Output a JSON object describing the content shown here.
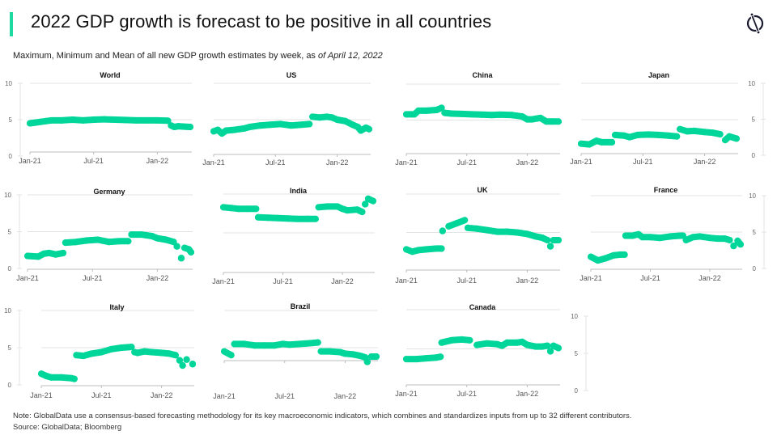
{
  "header": {
    "title": "2022 GDP growth is forecast to be positive in all countries",
    "subtitle_prefix": "Maximum, Minimum and Mean of all new GDP growth estimates by week, as ",
    "subtitle_date": "of April 12, 2022",
    "logo_icon": "globaldata-logo-icon"
  },
  "colors": {
    "accent": "#1ed9a0",
    "series": "#00d69a",
    "grid": "#e3e3e3",
    "axis": "#bdbdbd",
    "tick_text": "#666666"
  },
  "footer": {
    "note": "Note: GlobalData use a consensus-based forecasting methodology for its key macroeconomic indicators, which combines and standardizes inputs from up to 32 different contributors.",
    "source": "Source: GlobalData; Bloomberg"
  },
  "chart_data": [
    {
      "type": "scatter",
      "title": "World",
      "xlabel": "",
      "ylabel": "",
      "x_ticks": [
        "Jan-21",
        "Jul-21",
        "Jan-22"
      ],
      "x_range": [
        "Jan-21",
        "Apr-22"
      ],
      "ylim": [
        0,
        10
      ],
      "y_ticks": [
        0,
        5,
        10
      ],
      "y_axis_side": "left",
      "grid": true,
      "x_months": [
        0,
        0.5,
        1,
        1.5,
        2,
        3,
        4,
        5,
        6,
        7,
        8,
        9,
        10,
        11,
        12,
        13,
        13.3,
        13.6,
        14,
        14.5,
        15.1
      ],
      "values": [
        4.5,
        4.6,
        4.7,
        4.8,
        4.9,
        4.9,
        5.0,
        4.9,
        5.0,
        5.05,
        5.0,
        4.95,
        4.9,
        4.9,
        4.9,
        4.85,
        4.2,
        4.0,
        4.1,
        4.05,
        4.0
      ]
    },
    {
      "type": "scatter",
      "title": "US",
      "xlabel": "",
      "ylabel": "",
      "x_ticks": [
        "Jan-21",
        "Jul-21",
        "Jan-22"
      ],
      "x_range": [
        "Jan-21",
        "Apr-22"
      ],
      "ylim": [
        0,
        10
      ],
      "y_ticks": [
        0,
        5,
        10
      ],
      "y_axis_side": "none",
      "grid": true,
      "x_months": [
        0,
        0.4,
        0.8,
        1.2,
        2,
        3,
        3.5,
        4.5,
        5.5,
        6.5,
        7.5,
        8.5,
        9.3,
        9.6,
        10.3,
        11,
        11.5,
        12,
        12.8,
        13.5,
        14,
        14.3,
        14.8,
        15.1
      ],
      "values": [
        3.4,
        3.6,
        3.1,
        3.5,
        3.6,
        3.8,
        4.0,
        4.2,
        4.3,
        4.4,
        4.2,
        4.3,
        4.4,
        5.4,
        5.3,
        5.4,
        5.3,
        5.0,
        4.8,
        4.3,
        4.0,
        3.5,
        3.9,
        3.7
      ]
    },
    {
      "type": "scatter",
      "title": "China",
      "xlabel": "",
      "ylabel": "",
      "x_ticks": [
        "Jan-21",
        "Jul-21",
        "Jan-22"
      ],
      "x_range": [
        "Jan-21",
        "Apr-22"
      ],
      "ylim": [
        0,
        10
      ],
      "y_ticks": [
        0,
        5,
        10
      ],
      "y_axis_side": "none",
      "grid": true,
      "x_months": [
        0,
        0.8,
        1.2,
        2,
        3,
        3.5,
        3.8,
        4.5,
        5.5,
        6.5,
        7.5,
        8.5,
        9.3,
        10.5,
        11.5,
        12,
        12.5,
        13.3,
        13.9,
        14.4,
        15.1
      ],
      "values": [
        5.8,
        5.8,
        6.3,
        6.3,
        6.4,
        6.7,
        6.0,
        5.9,
        5.85,
        5.8,
        5.75,
        5.7,
        5.75,
        5.7,
        5.5,
        5.1,
        5.1,
        5.3,
        4.8,
        4.8,
        4.8
      ]
    },
    {
      "type": "scatter",
      "title": "Japan",
      "xlabel": "",
      "ylabel": "",
      "x_ticks": [
        "Jan-21",
        "Jul-21",
        "Jan-22"
      ],
      "x_range": [
        "Jan-21",
        "Apr-22"
      ],
      "ylim": [
        0,
        10
      ],
      "y_ticks": [
        0,
        5,
        10
      ],
      "y_axis_side": "right",
      "grid": true,
      "x_months": [
        0,
        0.8,
        1.5,
        2,
        3,
        3.3,
        4.2,
        4.7,
        5.5,
        6.5,
        7.5,
        8.5,
        9.3,
        9.6,
        10.3,
        11,
        12,
        12.8,
        13.5,
        14,
        14.4,
        15.1
      ],
      "values": [
        1.7,
        1.6,
        2.1,
        1.9,
        1.9,
        2.9,
        2.8,
        2.6,
        2.9,
        2.95,
        2.9,
        2.8,
        2.7,
        3.7,
        3.4,
        3.45,
        3.3,
        3.2,
        3.0,
        2.2,
        2.7,
        2.4
      ]
    },
    {
      "type": "scatter",
      "title": "Germany",
      "xlabel": "",
      "ylabel": "",
      "x_ticks": [
        "Jan-21",
        "Jul-21",
        "Jan-22"
      ],
      "x_range": [
        "Jan-21",
        "Apr-22"
      ],
      "ylim": [
        0,
        10
      ],
      "y_ticks": [
        0,
        5,
        10
      ],
      "y_axis_side": "left",
      "grid": true,
      "x_months": [
        0,
        1,
        1.5,
        2,
        2.6,
        3.3,
        3.5,
        4.5,
        5.5,
        6.5,
        7.5,
        8.5,
        9.3,
        9.6,
        10.5,
        11.5,
        12,
        12.8,
        13.5,
        13.8,
        14.2,
        14.5,
        14.9,
        15.1
      ],
      "values": [
        1.7,
        1.6,
        2.0,
        2.1,
        1.9,
        2.1,
        3.5,
        3.6,
        3.8,
        3.9,
        3.6,
        3.7,
        3.7,
        4.6,
        4.6,
        4.4,
        4.1,
        3.9,
        3.6,
        3.0,
        1.4,
        2.8,
        2.6,
        2.2
      ]
    },
    {
      "type": "scatter",
      "title": "India",
      "xlabel": "",
      "ylabel": "",
      "x_ticks": [
        "Jan-21",
        "Jul-21",
        "Jan-22"
      ],
      "x_range": [
        "Jan-21",
        "Apr-22"
      ],
      "ylim": [
        0,
        10
      ],
      "y_ticks": [
        0,
        5,
        10
      ],
      "y_axis_side": "none",
      "grid": true,
      "x_months": [
        0,
        0.8,
        1.5,
        2.5,
        3.3,
        3.5,
        4.5,
        5.5,
        6.5,
        7.5,
        8.5,
        9.3,
        9.6,
        10.5,
        11.5,
        12,
        12.5,
        13.5,
        14,
        14.3,
        14.6,
        15.1
      ],
      "values": [
        8.3,
        8.2,
        8.1,
        8.1,
        8.1,
        7.0,
        6.95,
        6.9,
        6.85,
        6.8,
        6.8,
        6.8,
        8.3,
        8.4,
        8.4,
        8.1,
        7.9,
        8.0,
        7.7,
        8.7,
        9.4,
        9.1
      ]
    },
    {
      "type": "scatter",
      "title": "UK",
      "xlabel": "",
      "ylabel": "",
      "x_ticks": [
        "Jan-21",
        "Jul-21",
        "Jan-22"
      ],
      "x_range": [
        "Jan-21",
        "Apr-22"
      ],
      "ylim": [
        0,
        10
      ],
      "y_ticks": [
        0,
        5,
        10
      ],
      "y_axis_side": "none",
      "grid": true,
      "x_months": [
        0,
        0.6,
        1.2,
        2,
        3,
        3.5,
        3.6,
        4.2,
        5,
        5.8,
        6.1,
        7,
        8,
        9,
        10,
        11,
        12,
        12.8,
        13.5,
        14,
        14.3,
        14.6,
        15.1
      ],
      "values": [
        2.8,
        2.5,
        2.7,
        2.8,
        2.9,
        2.9,
        5.2,
        5.8,
        6.2,
        6.6,
        5.6,
        5.5,
        5.3,
        5.1,
        5.1,
        5.0,
        4.8,
        4.5,
        4.3,
        4.0,
        3.2,
        4.0,
        4.0
      ]
    },
    {
      "type": "scatter",
      "title": "France",
      "xlabel": "",
      "ylabel": "",
      "x_ticks": [
        "Jan-21",
        "Jul-21",
        "Jan-22"
      ],
      "x_range": [
        "Jan-21",
        "Apr-22"
      ],
      "ylim": [
        0,
        10
      ],
      "y_ticks": [
        0,
        5,
        10
      ],
      "y_axis_side": "right",
      "grid": true,
      "x_months": [
        0,
        0.7,
        1.5,
        2.3,
        3,
        3.4,
        3.5,
        4.2,
        4.8,
        5.2,
        6,
        7,
        8,
        9,
        9.3,
        9.6,
        10.3,
        11,
        12,
        12.8,
        13.5,
        14,
        14.4,
        14.8,
        15.1
      ],
      "values": [
        1.6,
        1.1,
        1.4,
        1.8,
        1.9,
        1.9,
        4.5,
        4.5,
        4.7,
        4.3,
        4.3,
        4.2,
        4.4,
        4.5,
        4.5,
        3.9,
        4.3,
        4.4,
        4.2,
        4.1,
        4.1,
        3.9,
        3.1,
        3.8,
        3.3
      ]
    },
    {
      "type": "scatter",
      "title": "Italy",
      "xlabel": "",
      "ylabel": "",
      "x_ticks": [
        "Jan-21",
        "Jul-21",
        "Jan-22"
      ],
      "x_range": [
        "Jan-21",
        "Apr-22"
      ],
      "ylim": [
        0,
        10
      ],
      "y_ticks": [
        0,
        5,
        10
      ],
      "y_axis_side": "left",
      "grid": true,
      "x_months": [
        0,
        0.5,
        1,
        2,
        3,
        3.3,
        3.5,
        4.2,
        5,
        6,
        7,
        8,
        9,
        9.3,
        9.6,
        10.3,
        11,
        12,
        12.8,
        13.4,
        13.8,
        14.1,
        14.5,
        15.1
      ],
      "values": [
        1.5,
        1.2,
        1.0,
        1.0,
        0.9,
        0.8,
        4.0,
        3.9,
        4.2,
        4.4,
        4.8,
        5.0,
        5.1,
        4.4,
        4.3,
        4.5,
        4.4,
        4.3,
        4.2,
        4.0,
        3.3,
        2.6,
        3.4,
        2.8
      ]
    },
    {
      "type": "scatter",
      "title": "Brazil",
      "xlabel": "",
      "ylabel": "",
      "x_ticks": [
        "Jan-21",
        "Jul-21",
        "Jan-22"
      ],
      "x_range": [
        "Jan-21",
        "Apr-22"
      ],
      "ylim": [
        0,
        10
      ],
      "y_ticks": [
        0,
        5,
        10
      ],
      "y_axis_side": "none",
      "grid": true,
      "x_months": [
        0,
        0.7,
        1,
        2,
        3,
        4,
        5,
        5.8,
        6.5,
        7.5,
        8.5,
        9.3,
        9.6,
        10.5,
        11.5,
        12,
        12.8,
        13.5,
        14,
        14.2,
        14.6,
        15.1
      ],
      "values": [
        4.5,
        4.0,
        5.5,
        5.5,
        5.3,
        5.3,
        5.3,
        5.5,
        5.4,
        5.5,
        5.6,
        5.7,
        4.5,
        4.5,
        4.4,
        4.2,
        4.1,
        3.9,
        3.7,
        3.1,
        3.8,
        3.8
      ]
    },
    {
      "type": "scatter",
      "title": "Canada",
      "xlabel": "",
      "ylabel": "",
      "x_ticks": [
        "Jan-21",
        "Jul-21",
        "Jan-22"
      ],
      "x_range": [
        "Jan-21",
        "Apr-22"
      ],
      "ylim": [
        0,
        10
      ],
      "y_ticks": [
        0,
        5,
        10
      ],
      "y_axis_side": "right",
      "grid": true,
      "x_months": [
        0,
        1,
        2,
        3,
        3.4,
        3.5,
        4.5,
        5.5,
        6.3,
        7,
        8,
        9,
        9.5,
        10,
        11,
        11.5,
        12,
        12.8,
        13.5,
        14,
        14.3,
        14.6,
        15.1
      ],
      "values": [
        3.7,
        3.7,
        3.8,
        3.9,
        4.0,
        5.8,
        6.1,
        6.2,
        6.1,
        5.5,
        5.7,
        5.6,
        5.4,
        5.8,
        5.8,
        5.9,
        5.5,
        5.3,
        5.3,
        5.4,
        4.7,
        5.4,
        5.1
      ]
    }
  ]
}
